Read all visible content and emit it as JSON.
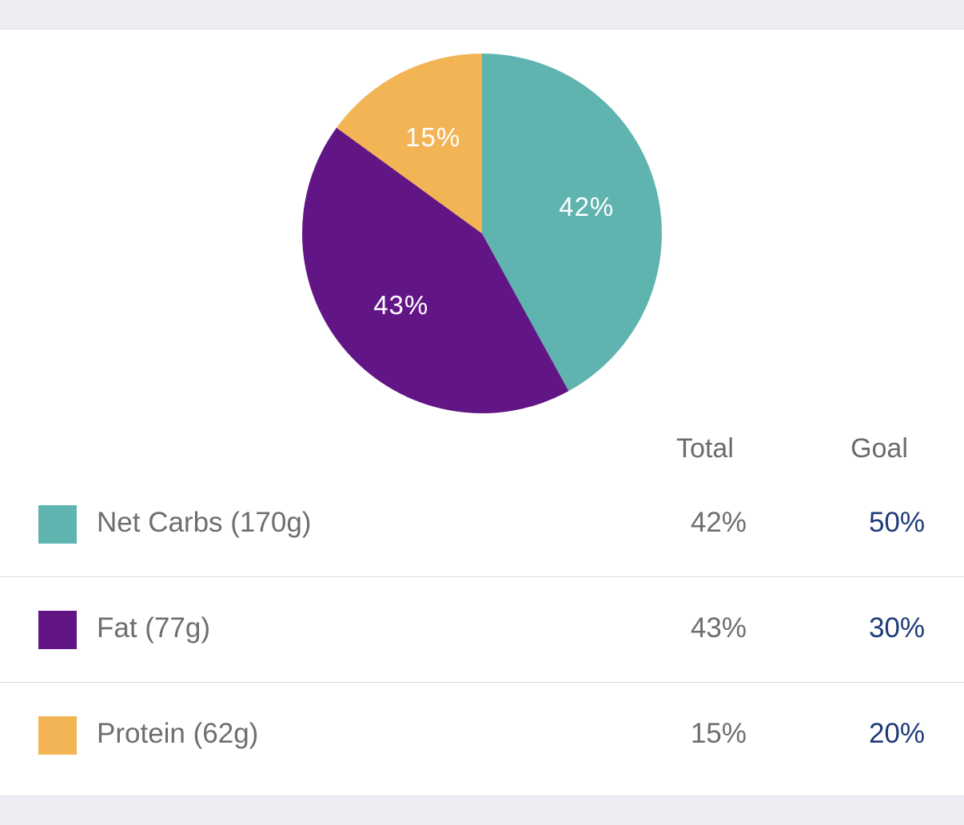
{
  "chart_data": {
    "type": "pie",
    "slices": [
      {
        "name": "Net Carbs",
        "value": 42,
        "label": "42%",
        "color": "#5fb4b0"
      },
      {
        "name": "Fat",
        "value": 43,
        "label": "43%",
        "color": "#621686"
      },
      {
        "name": "Protein",
        "value": 15,
        "label": "15%",
        "color": "#f2b455"
      }
    ]
  },
  "table": {
    "headers": {
      "total": "Total",
      "goal": "Goal"
    },
    "rows": [
      {
        "label": "Net Carbs (170g)",
        "total": "42%",
        "goal": "50%",
        "color": "#5fb4b0"
      },
      {
        "label": "Fat (77g)",
        "total": "43%",
        "goal": "30%",
        "color": "#621686"
      },
      {
        "label": "Protein (62g)",
        "total": "15%",
        "goal": "20%",
        "color": "#f2b455"
      }
    ]
  }
}
